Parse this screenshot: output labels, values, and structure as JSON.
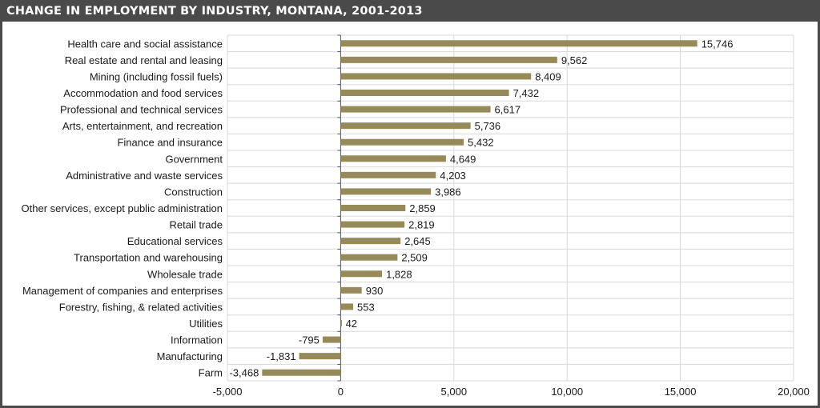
{
  "title": "CHANGE IN EMPLOYMENT BY INDUSTRY, MONTANA, 2001-2013",
  "colors": {
    "bar": "#958a58",
    "title_bar": "#4a4a4a",
    "title_text": "#ffffff",
    "grid": "#d8d8d8",
    "axis": "#555555",
    "text": "#1a1a1a"
  },
  "chart_data": {
    "type": "bar",
    "orientation": "horizontal",
    "title": "CHANGE IN EMPLOYMENT BY INDUSTRY, MONTANA, 2001-2013",
    "xlabel": "",
    "ylabel": "",
    "xlim": [
      -5000,
      20000
    ],
    "xticks": [
      -5000,
      0,
      5000,
      10000,
      15000,
      20000
    ],
    "xtick_labels": [
      "-5,000",
      "0",
      "5,000",
      "10,000",
      "15,000",
      "20,000"
    ],
    "grid": "vertical-and-horizontal",
    "legend": "none",
    "categories": [
      "Health care and social assistance",
      "Real estate and rental and leasing",
      "Mining (including fossil fuels)",
      "Accommodation and food services",
      "Professional and technical services",
      "Arts, entertainment, and recreation",
      "Finance and insurance",
      "Government",
      "Administrative and waste services",
      "Construction",
      "Other services, except public administration",
      "Retail trade",
      "Educational services",
      "Transportation and warehousing",
      "Wholesale trade",
      "Management of companies and enterprises",
      "Forestry, fishing, & related activities",
      "Utilities",
      "Information",
      "Manufacturing",
      "Farm"
    ],
    "values": [
      15746,
      9562,
      8409,
      7432,
      6617,
      5736,
      5432,
      4649,
      4203,
      3986,
      2859,
      2819,
      2645,
      2509,
      1828,
      930,
      553,
      42,
      -795,
      -1831,
      -3468
    ],
    "value_labels": [
      "15,746",
      "9,562",
      "8,409",
      "7,432",
      "6,617",
      "5,736",
      "5,432",
      "4,649",
      "4,203",
      "3,986",
      "2,859",
      "2,819",
      "2,645",
      "2,509",
      "1,828",
      "930",
      "553",
      "42",
      "-795",
      "-1,831",
      "-3,468"
    ]
  }
}
